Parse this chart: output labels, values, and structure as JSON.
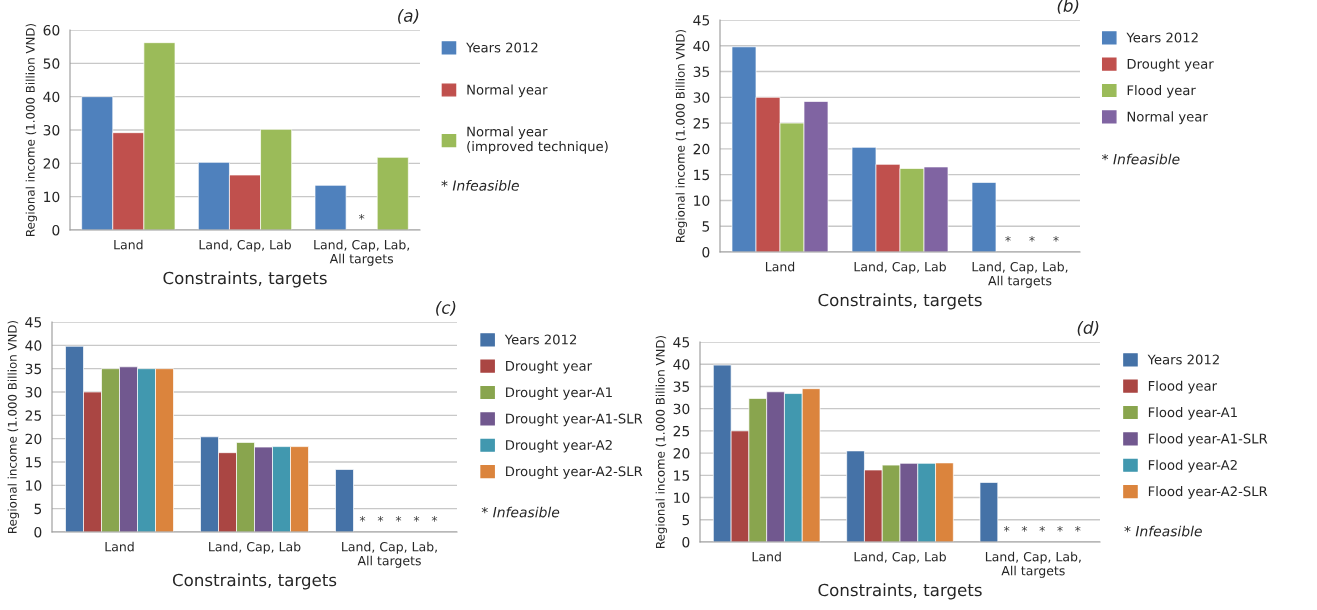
{
  "chart_data": [
    {
      "type": "bar",
      "title": "(a)",
      "xlabel": "Constraints, targets",
      "ylabel": "Regional income (1.000 Billion VND)",
      "categories": [
        "Land",
        "Land, Cap, Lab",
        "Land, Cap, Lab, All targets"
      ],
      "series": [
        {
          "name": "Years 2012",
          "color": "#4f81bd",
          "values": [
            40,
            20.3,
            13.4
          ]
        },
        {
          "name": "Normal year",
          "color": "#c0504d",
          "values": [
            29.2,
            16.5,
            null
          ],
          "value_labels": [
            null,
            null,
            "*"
          ]
        },
        {
          "name": "Normal year (improved technique)",
          "color": "#9bbb59",
          "values": [
            56.2,
            30.2,
            21.8
          ]
        }
      ],
      "ylim": [
        0,
        60
      ],
      "yticks": [
        0,
        10,
        20,
        30,
        40,
        50,
        60
      ],
      "grid": "y",
      "legend": "right",
      "annotations": [
        "* Infeasible"
      ]
    },
    {
      "type": "bar",
      "title": "(b)",
      "xlabel": "Constraints, targets",
      "ylabel": "Regional income (1.000 Billion VND)",
      "categories": [
        "Land",
        "Land, Cap, Lab",
        "Land, Cap, Lab, All targets"
      ],
      "series": [
        {
          "name": "Years 2012",
          "color": "#4f81bd",
          "values": [
            39.8,
            20.3,
            13.5
          ]
        },
        {
          "name": "Drought year",
          "color": "#c0504d",
          "values": [
            30,
            17,
            null
          ],
          "value_labels": [
            null,
            null,
            "*"
          ]
        },
        {
          "name": "Flood year",
          "color": "#9bbb59",
          "values": [
            25,
            16.2,
            null
          ],
          "value_labels": [
            null,
            null,
            "*"
          ]
        },
        {
          "name": "Normal year",
          "color": "#8064a2",
          "values": [
            29.2,
            16.5,
            null
          ],
          "value_labels": [
            null,
            null,
            "*"
          ]
        }
      ],
      "ylim": [
        0,
        45
      ],
      "yticks": [
        0,
        5,
        10,
        15,
        20,
        25,
        30,
        35,
        40,
        45
      ],
      "grid": "y",
      "legend": "right",
      "annotations": [
        "* Infeasible"
      ]
    },
    {
      "type": "bar",
      "title": "(c)",
      "xlabel": "Constraints, targets",
      "ylabel": "Regional income (1.000 Billion VND)",
      "categories": [
        "Land",
        "Land, Cap, Lab",
        "Land, Cap, Lab, All targets"
      ],
      "series": [
        {
          "name": "Years 2012",
          "color": "#4572a7",
          "values": [
            39.8,
            20.4,
            13.4
          ]
        },
        {
          "name": "Drought year",
          "color": "#aa4643",
          "values": [
            30,
            17,
            null
          ],
          "value_labels": [
            null,
            null,
            "*"
          ]
        },
        {
          "name": "Drought year-A1",
          "color": "#89a54e",
          "values": [
            35,
            19.2,
            null
          ],
          "value_labels": [
            null,
            null,
            "*"
          ]
        },
        {
          "name": "Drought year-A1-SLR",
          "color": "#71588f",
          "values": [
            35.4,
            18.2,
            null
          ],
          "value_labels": [
            null,
            null,
            "*"
          ]
        },
        {
          "name": "Drought year-A2",
          "color": "#4198af",
          "values": [
            35,
            18.3,
            null
          ],
          "value_labels": [
            null,
            null,
            "*"
          ]
        },
        {
          "name": "Drought year-A2-SLR",
          "color": "#db843d",
          "values": [
            35,
            18.3,
            null
          ],
          "value_labels": [
            null,
            null,
            "*"
          ]
        }
      ],
      "ylim": [
        0,
        45
      ],
      "yticks": [
        0,
        5,
        10,
        15,
        20,
        25,
        30,
        35,
        40,
        45
      ],
      "grid": "y",
      "legend": "right",
      "annotations": [
        "* Infeasible"
      ]
    },
    {
      "type": "bar",
      "title": "(d)",
      "xlabel": "Constraints, targets",
      "ylabel": "Regional income (1.000 Billion VND)",
      "categories": [
        "Land",
        "Land, Cap, Lab",
        "Land, Cap, Lab, All targets"
      ],
      "series": [
        {
          "name": "Years 2012",
          "color": "#4572a7",
          "values": [
            39.8,
            20.5,
            13.4
          ]
        },
        {
          "name": "Flood year",
          "color": "#aa4643",
          "values": [
            25,
            16.2,
            null
          ],
          "value_labels": [
            null,
            null,
            "*"
          ]
        },
        {
          "name": "Flood year-A1",
          "color": "#89a54e",
          "values": [
            32.3,
            17.3,
            null
          ],
          "value_labels": [
            null,
            null,
            "*"
          ]
        },
        {
          "name": "Flood year-A1-SLR",
          "color": "#71588f",
          "values": [
            33.8,
            17.7,
            null
          ],
          "value_labels": [
            null,
            null,
            "*"
          ]
        },
        {
          "name": "Flood year-A2",
          "color": "#4198af",
          "values": [
            33.4,
            17.7,
            null
          ],
          "value_labels": [
            null,
            null,
            "*"
          ]
        },
        {
          "name": "Flood year-A2-SLR",
          "color": "#db843d",
          "values": [
            34.5,
            17.8,
            null
          ],
          "value_labels": [
            null,
            null,
            "*"
          ]
        }
      ],
      "ylim": [
        0,
        45
      ],
      "yticks": [
        0,
        5,
        10,
        15,
        20,
        25,
        30,
        35,
        40,
        45
      ],
      "grid": "y",
      "legend": "right",
      "annotations": [
        "* Infeasible"
      ]
    }
  ]
}
